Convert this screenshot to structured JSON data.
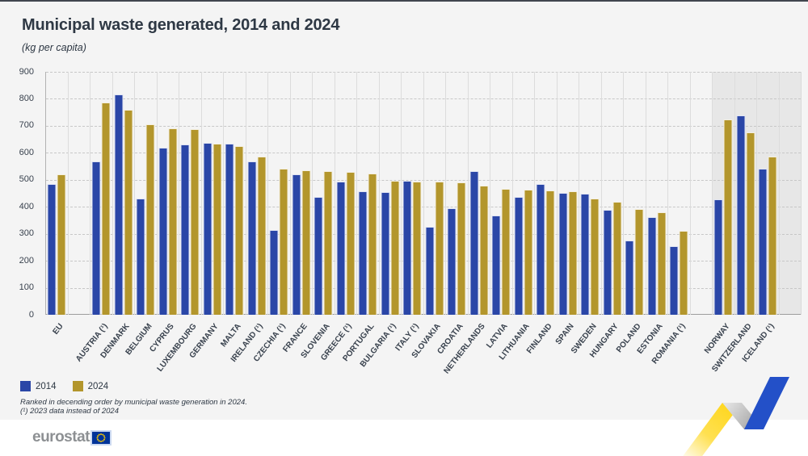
{
  "chart_data": {
    "type": "bar",
    "title": "Municipal waste generated, 2014 and 2024",
    "subtitle": "(kg per capita)",
    "unit": "kg per capita",
    "y_axis": {
      "min": 0,
      "max": 900,
      "step": 100
    },
    "grid": "horizontal-dashed",
    "legend_position": "bottom-left",
    "legend": [
      {
        "label": "2014",
        "color": "#2A46A7"
      },
      {
        "label": "2024",
        "color": "#B3962C"
      }
    ],
    "categories": [
      "EU",
      "",
      "AUSTRIA (¹)",
      "DENMARK",
      "BELGIUM",
      "CYPRUS",
      "LUXEMBOURG",
      "GERMANY",
      "MALTA",
      "IRELAND (¹)",
      "CZECHIA (¹)",
      "FRANCE",
      "SLOVENIA",
      "GREECE (¹)",
      "PORTUGAL",
      "BULGARIA (¹)",
      "ITALY (¹)",
      "SLOVAKIA",
      "CROATIA",
      "NETHERLANDS",
      "LATVIA",
      "LITHUANIA",
      "FINLAND",
      "SPAIN",
      "SWEDEN",
      "HUNGARY",
      "POLAND",
      "ESTONIA",
      "ROMANIA (¹)",
      "",
      "NORWAY",
      "SWITZERLAND",
      "ICELAND (¹)"
    ],
    "series": [
      {
        "name": "2014",
        "color": "#2A46A7",
        "values": [
          480,
          null,
          566,
          812,
          427,
          616,
          628,
          633,
          632,
          565,
          311,
          517,
          433,
          489,
          455,
          452,
          494,
          322,
          392,
          528,
          364,
          433,
          482,
          450,
          446,
          385,
          272,
          358,
          250,
          null,
          425,
          736,
          538
        ]
      },
      {
        "name": "2024",
        "color": "#B3962C",
        "values": [
          518,
          null,
          784,
          757,
          702,
          689,
          685,
          630,
          622,
          583,
          539,
          532,
          528,
          526,
          521,
          492,
          491,
          490,
          487,
          475,
          463,
          462,
          457,
          455,
          427,
          417,
          389,
          376,
          307,
          null,
          721,
          673,
          583
        ]
      }
    ],
    "shaded_from_index": 30,
    "shaded_region_color": "#E7E7E7"
  },
  "footnotes": [
    "Ranked in decending order by municipal waste generation in 2024.",
    "(¹) 2023 data instead of 2024"
  ],
  "logo": {
    "text": "eurostat"
  },
  "colors": {
    "bar_2014": "#2A46A7",
    "bar_2024": "#B3962C",
    "flag_blue": "#003399",
    "flag_stars": "#FFCC00",
    "logo_gray": "#8D9093",
    "zigzag_yellow": "#FFD617",
    "zigzag_blue": "#2350C8"
  }
}
